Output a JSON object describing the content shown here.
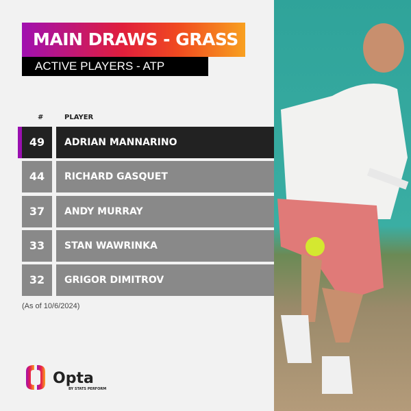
{
  "header": {
    "title": "MAIN DRAWS - GRASS",
    "subtitle": "ACTIVE PLAYERS - ATP"
  },
  "table": {
    "columns": [
      "#",
      "PLAYER"
    ],
    "rows": [
      {
        "value": "49",
        "player": "ADRIAN MANNARINO"
      },
      {
        "value": "44",
        "player": "RICHARD GASQUET"
      },
      {
        "value": "37",
        "player": "ANDY MURRAY"
      },
      {
        "value": "33",
        "player": "STAN WAWRINKA"
      },
      {
        "value": "32",
        "player": "GRIGOR DIMITROV"
      }
    ]
  },
  "footnote": "(As of 10/6/2024)",
  "logo": {
    "name": "Opta",
    "tagline": "BY STATS PERFORM"
  },
  "colors": {
    "highlight": "#9a10b0",
    "row_dark": "#222222",
    "row_gray": "#898989"
  }
}
